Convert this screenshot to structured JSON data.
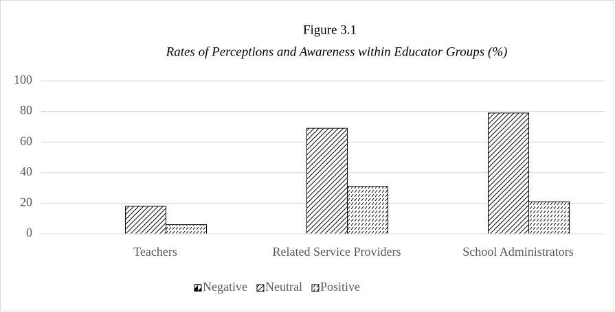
{
  "chart_data": {
    "type": "bar",
    "title": "Figure 3.1",
    "subtitle": "Rates of Perceptions and Awareness within Educator Groups (%)",
    "categories": [
      "Teachers",
      "Related Service Providers",
      "School Administrators"
    ],
    "series": [
      {
        "name": "Negative",
        "values": [
          0,
          0,
          0
        ]
      },
      {
        "name": "Neutral",
        "values": [
          18,
          69,
          79
        ]
      },
      {
        "name": "Positive",
        "values": [
          6,
          31,
          21
        ]
      }
    ],
    "ylim": [
      0,
      100
    ],
    "yticks": [
      0,
      20,
      40,
      60,
      80,
      100
    ],
    "grid": true,
    "legend": "bottom"
  }
}
